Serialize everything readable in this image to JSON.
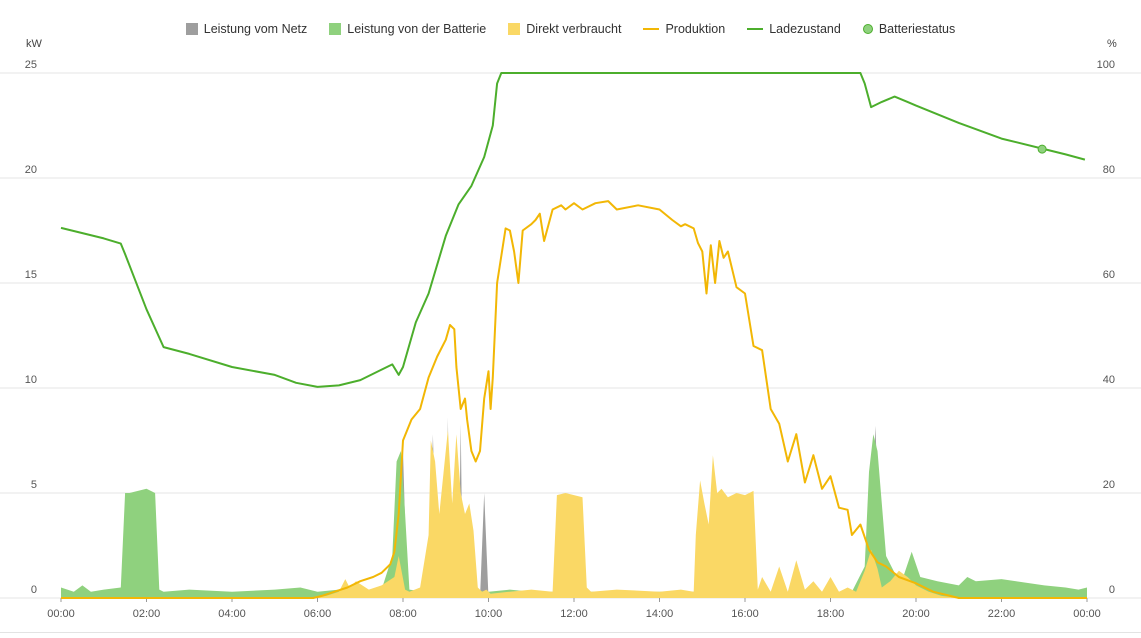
{
  "legend": [
    {
      "label": "Leistung vom Netz",
      "kind": "box",
      "color": "#9e9e9e"
    },
    {
      "label": "Leistung von der Batterie",
      "kind": "box",
      "color": "#8fd17e"
    },
    {
      "label": "Direkt verbraucht",
      "kind": "box",
      "color": "#fad865"
    },
    {
      "label": "Produktion",
      "kind": "line",
      "color": "#f2b705"
    },
    {
      "label": "Ladezustand",
      "kind": "line",
      "color": "#4cae2c"
    },
    {
      "label": "Batteriestatus",
      "kind": "dot",
      "color": "#8fd17e"
    }
  ],
  "axis": {
    "left_unit": "kW",
    "right_unit": "%"
  },
  "chart_data": {
    "type": "area",
    "title": "",
    "xlabel": "",
    "ylabel_left": "kW",
    "ylabel_right": "%",
    "x_range": [
      0,
      24
    ],
    "ylim_left": [
      0,
      25
    ],
    "ylim_right": [
      0,
      100
    ],
    "grid": true,
    "legend_position": "top-center",
    "x_tick_labels": [
      "00:00",
      "02:00",
      "04:00",
      "06:00",
      "08:00",
      "10:00",
      "12:00",
      "14:00",
      "16:00",
      "18:00",
      "20:00",
      "22:00",
      "00:00"
    ],
    "y_left_tick_labels": [
      "0",
      "5",
      "10",
      "15",
      "20",
      "25"
    ],
    "y_right_tick_labels": [
      "0",
      "20",
      "40",
      "60",
      "80",
      "100"
    ],
    "series": [
      {
        "name": "Leistung vom Netz",
        "type": "area",
        "axis": "left",
        "color": "#9e9e9e",
        "x": [
          0,
          6.6,
          6.75,
          6.9,
          7.8,
          7.9,
          8.0,
          8.1,
          8.6,
          8.7,
          8.8,
          9.0,
          9.05,
          9.1,
          9.3,
          9.35,
          9.4,
          9.8,
          9.9,
          10.0,
          10.5,
          18.9,
          19.05,
          19.2,
          24
        ],
        "values": [
          0,
          0,
          0.5,
          0,
          0,
          5.0,
          7.0,
          0,
          0,
          7.8,
          0,
          0,
          8.6,
          0,
          0,
          8.3,
          0,
          0,
          5.0,
          0,
          0,
          0,
          8.2,
          0,
          0
        ]
      },
      {
        "name": "Leistung von der Batterie",
        "type": "area",
        "axis": "left",
        "color": "#8fd17e",
        "x": [
          0,
          0.3,
          0.5,
          0.7,
          1.0,
          1.4,
          1.5,
          1.6,
          2.0,
          2.2,
          2.3,
          2.4,
          3.0,
          4.0,
          5.0,
          5.6,
          6.0,
          6.5,
          7.5,
          7.75,
          7.85,
          7.95,
          8.05,
          8.15,
          8.5,
          9.5,
          10.0,
          10.5,
          11.0,
          12.0,
          18.5,
          18.8,
          18.9,
          19.0,
          19.1,
          19.3,
          19.5,
          19.7,
          19.9,
          20.1,
          20.5,
          21.0,
          21.2,
          21.4,
          22.0,
          23.0,
          23.5,
          23.8,
          24
        ],
        "values": [
          0.5,
          0.3,
          0.6,
          0.3,
          0.4,
          0.5,
          5.0,
          5.0,
          5.2,
          5.0,
          0.4,
          0.3,
          0.4,
          0.3,
          0.4,
          0.5,
          0.3,
          0.4,
          0.4,
          2.0,
          6.5,
          7.0,
          4.0,
          0.4,
          0.3,
          0.4,
          0.3,
          0.4,
          0.3,
          0.3,
          0.3,
          1.5,
          6.0,
          7.8,
          7.0,
          2.0,
          1.2,
          1.0,
          2.2,
          1.0,
          0.8,
          0.6,
          1.0,
          0.8,
          0.9,
          0.6,
          0.5,
          0.4,
          0.5
        ]
      },
      {
        "name": "Direkt verbraucht",
        "type": "area",
        "axis": "left",
        "color": "#fad865",
        "x": [
          0,
          5.9,
          6.2,
          6.5,
          6.65,
          6.75,
          6.9,
          7.2,
          7.5,
          7.8,
          7.9,
          8.05,
          8.15,
          8.4,
          8.6,
          8.65,
          8.75,
          8.85,
          8.95,
          9.05,
          9.15,
          9.25,
          9.35,
          9.45,
          9.55,
          9.65,
          9.75,
          9.85,
          9.95,
          10.05,
          10.5,
          11.0,
          11.5,
          11.6,
          11.8,
          12.0,
          12.2,
          12.3,
          12.4,
          13.0,
          14.0,
          14.5,
          14.8,
          14.85,
          14.95,
          15.05,
          15.15,
          15.25,
          15.35,
          15.45,
          15.6,
          15.8,
          16.0,
          16.2,
          16.3,
          16.4,
          16.6,
          16.8,
          17.0,
          17.2,
          17.4,
          17.6,
          17.8,
          18.0,
          18.2,
          18.4,
          18.6,
          18.8,
          18.95,
          19.1,
          19.2,
          19.4,
          19.6,
          19.8,
          20.0,
          20.3,
          20.6,
          21.0,
          24
        ],
        "values": [
          0,
          0,
          0.1,
          0.3,
          0.9,
          0.5,
          0.8,
          0.4,
          0.6,
          1.0,
          2.0,
          0.4,
          0.3,
          0.5,
          3.0,
          7.5,
          6.5,
          4.0,
          6.0,
          8.0,
          4.5,
          7.8,
          5.0,
          4.0,
          4.5,
          3.2,
          0.5,
          0.3,
          0.4,
          0.2,
          0.3,
          0.4,
          0.3,
          4.9,
          5.0,
          4.9,
          4.8,
          0.5,
          0.3,
          0.4,
          0.3,
          0.4,
          0.3,
          3.0,
          5.6,
          4.5,
          3.5,
          6.8,
          5.0,
          5.2,
          4.8,
          5.0,
          4.9,
          5.1,
          0.4,
          1.0,
          0.3,
          1.5,
          0.3,
          1.8,
          0.4,
          0.8,
          0.3,
          1.0,
          0.3,
          0.5,
          0.3,
          1.3,
          2.3,
          1.4,
          0.5,
          0.8,
          1.3,
          1.0,
          0.6,
          0.3,
          0.1,
          0,
          0
        ]
      },
      {
        "name": "Produktion",
        "type": "line",
        "axis": "left",
        "color": "#f2b705",
        "x": [
          0,
          5.9,
          6.1,
          6.4,
          6.7,
          7.0,
          7.3,
          7.5,
          7.7,
          7.8,
          7.9,
          8.0,
          8.2,
          8.4,
          8.6,
          8.8,
          9.0,
          9.1,
          9.2,
          9.25,
          9.35,
          9.45,
          9.5,
          9.6,
          9.7,
          9.8,
          9.9,
          10.0,
          10.05,
          10.1,
          10.2,
          10.4,
          10.5,
          10.6,
          10.7,
          10.8,
          11.0,
          11.1,
          11.2,
          11.3,
          11.5,
          11.7,
          11.8,
          12.0,
          12.2,
          12.5,
          12.8,
          13.0,
          13.5,
          14.0,
          14.3,
          14.5,
          14.6,
          14.8,
          14.9,
          15.0,
          15.1,
          15.2,
          15.3,
          15.4,
          15.5,
          15.6,
          15.8,
          16.0,
          16.2,
          16.4,
          16.6,
          16.8,
          17.0,
          17.2,
          17.4,
          17.6,
          17.8,
          18.0,
          18.2,
          18.4,
          18.5,
          18.7,
          18.9,
          19.0,
          19.1,
          19.3,
          19.6,
          20.0,
          20.4,
          20.8,
          21.0,
          24
        ],
        "values": [
          0,
          0,
          0.1,
          0.3,
          0.5,
          0.8,
          1.0,
          1.2,
          1.6,
          2.2,
          4.0,
          7.5,
          8.5,
          9.0,
          10.5,
          11.5,
          12.3,
          13.0,
          12.8,
          11.0,
          9.0,
          9.5,
          8.5,
          7.0,
          6.5,
          7.0,
          9.5,
          10.8,
          9.0,
          10.5,
          15.0,
          17.6,
          17.5,
          16.5,
          15.0,
          17.5,
          17.8,
          18.0,
          18.3,
          17.0,
          18.5,
          18.7,
          18.5,
          18.8,
          18.5,
          18.8,
          18.9,
          18.5,
          18.7,
          18.5,
          18.0,
          17.7,
          17.8,
          17.6,
          16.9,
          16.5,
          14.5,
          16.8,
          15.0,
          17.0,
          16.2,
          16.5,
          14.8,
          14.5,
          12.0,
          11.8,
          9.0,
          8.3,
          6.5,
          7.8,
          5.5,
          6.8,
          5.2,
          5.8,
          4.3,
          4.2,
          3.0,
          3.5,
          2.3,
          2.0,
          1.7,
          1.5,
          1.0,
          0.7,
          0.3,
          0.1,
          0,
          0
        ]
      },
      {
        "name": "Ladezustand",
        "type": "line",
        "axis": "right",
        "color": "#4cae2c",
        "x": [
          0,
          0.5,
          1.0,
          1.4,
          1.5,
          2.0,
          2.4,
          3.0,
          4.0,
          5.0,
          5.5,
          6.0,
          6.5,
          7.0,
          7.5,
          7.75,
          7.9,
          8.0,
          8.3,
          8.6,
          9.0,
          9.3,
          9.6,
          9.9,
          10.1,
          10.2,
          10.3,
          18.7,
          18.8,
          18.95,
          19.2,
          19.5,
          19.8,
          20.0,
          21.0,
          22.0,
          23.0,
          23.5,
          23.95
        ],
        "values": [
          70.5,
          69.5,
          68.5,
          67.5,
          65.5,
          55.0,
          47.8,
          46.5,
          44.0,
          42.5,
          41.0,
          40.2,
          40.5,
          41.5,
          43.5,
          44.5,
          42.5,
          44.0,
          52.5,
          58.0,
          69.0,
          75.0,
          78.5,
          84.0,
          90.0,
          98.0,
          100.0,
          100.0,
          98.0,
          93.5,
          94.5,
          95.5,
          94.5,
          93.8,
          90.5,
          87.5,
          85.5,
          84.5,
          83.5
        ]
      },
      {
        "name": "Batteriestatus",
        "type": "scatter",
        "axis": "right",
        "color": "#8fd17e",
        "points": [
          {
            "x": 22.95,
            "y": 85.5
          }
        ]
      }
    ]
  }
}
